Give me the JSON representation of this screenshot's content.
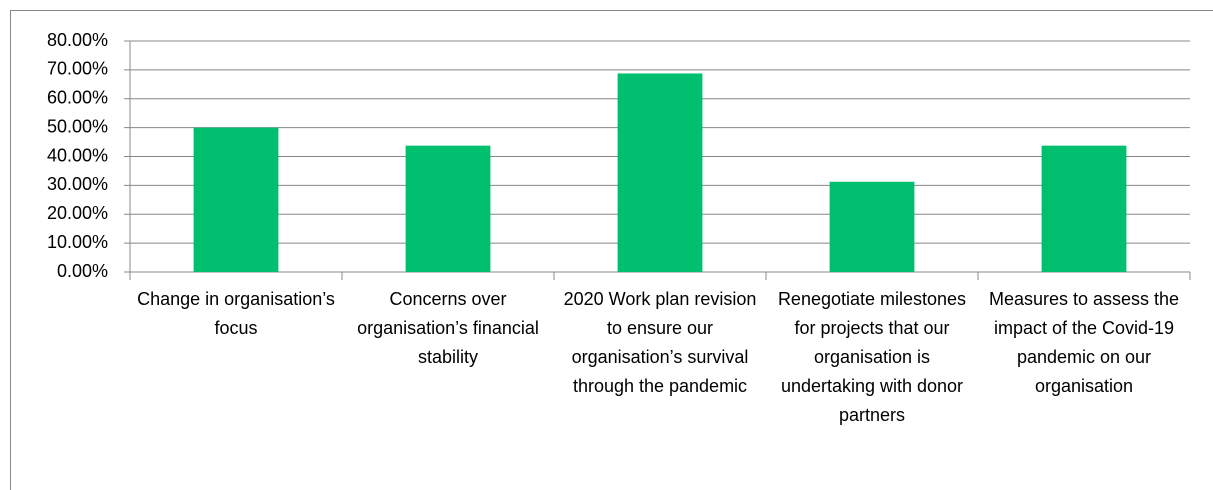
{
  "chart_data": {
    "type": "bar",
    "categories": [
      "Change in organisation’s focus",
      "Concerns over organisation’s financial stability",
      "2020 Work plan revision to ensure our organisation’s survival through the pandemic",
      "Renegotiate milestones for projects that our organisation is undertaking with donor partners",
      "Measures to assess the impact of the Covid-19 pandemic on our organisation"
    ],
    "values": [
      50,
      43.75,
      68.75,
      31.25,
      43.75
    ],
    "color": "#00bf6f",
    "ylim": [
      0,
      80
    ],
    "yticks": [
      {
        "value": 0,
        "label": "0.00%"
      },
      {
        "value": 10,
        "label": "10.00%"
      },
      {
        "value": 20,
        "label": "20.00%"
      },
      {
        "value": 30,
        "label": "30.00%"
      },
      {
        "value": 40,
        "label": "40.00%"
      },
      {
        "value": 50,
        "label": "50.00%"
      },
      {
        "value": 60,
        "label": "60.00%"
      },
      {
        "value": 70,
        "label": "70.00%"
      },
      {
        "value": 80,
        "label": "80.00%"
      }
    ],
    "grid": true
  }
}
